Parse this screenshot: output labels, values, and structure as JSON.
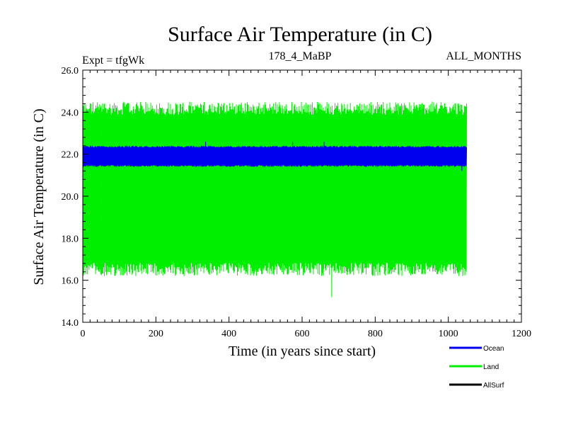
{
  "chart_data": {
    "type": "line",
    "title": "Surface Air Temperature (in C)",
    "subtitle_left": "Expt = tfgWk",
    "subtitle_center": "178_4_MaBP",
    "subtitle_right": "ALL_MONTHS",
    "xlabel": "Time (in years since start)",
    "ylabel": "Surface Air Temperature (in C)",
    "xlim": [
      0,
      1200
    ],
    "ylim": [
      14,
      26
    ],
    "x_ticks": [
      0,
      200,
      400,
      600,
      800,
      1000,
      1200
    ],
    "x_tick_labels": [
      "0",
      "200",
      "400",
      "600",
      "800",
      "1000",
      "1200"
    ],
    "y_ticks": [
      14,
      16,
      18,
      20,
      22,
      24,
      26
    ],
    "y_tick_labels": [
      "14.0",
      "16.0",
      "18.0",
      "20.0",
      "22.0",
      "24.0",
      "26.0"
    ],
    "x_range_of_data": [
      0,
      1050
    ],
    "series": [
      {
        "name": "Land",
        "color": "#00ee00",
        "min_approx": 16.2,
        "max_approx": 24.5,
        "extreme_min": 15.2,
        "extreme_max": 25.0
      },
      {
        "name": "Ocean",
        "color": "#0000ee",
        "min_approx": 21.4,
        "max_approx": 22.4,
        "extreme_min": 21.2,
        "extreme_max": 22.6
      },
      {
        "name": "AllSurf",
        "color": "#000000",
        "min_approx": null,
        "max_approx": null
      }
    ],
    "legend": [
      {
        "label": "Ocean",
        "color": "#0000ee"
      },
      {
        "label": "Land",
        "color": "#00ee00"
      },
      {
        "label": "AllSurf",
        "color": "#000000"
      }
    ]
  }
}
